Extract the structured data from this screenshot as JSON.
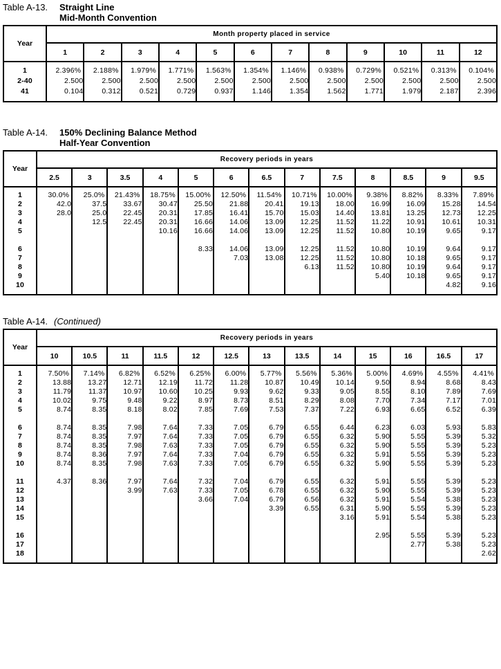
{
  "colors": {
    "background": "#ffffff",
    "text": "#000000",
    "border": "#000000"
  },
  "tables": [
    {
      "id": "a13",
      "label": "Table A-13.",
      "title_lines": [
        "Straight Line",
        "Mid-Month Convention"
      ],
      "year_header": "Year",
      "span_header": "Month property placed in service",
      "columns": [
        "1",
        "2",
        "3",
        "4",
        "5",
        "6",
        "7",
        "8",
        "9",
        "10",
        "11",
        "12"
      ],
      "rows": [
        {
          "year": "1",
          "values": [
            "2.396%",
            "2.188%",
            "1.979%",
            "1.771%",
            "1.563%",
            "1.354%",
            "1.146%",
            "0.938%",
            "0.729%",
            "0.521%",
            "0.313%",
            "0.104%"
          ]
        },
        {
          "year": "2-40",
          "values": [
            "2.500",
            "2.500",
            "2.500",
            "2.500",
            "2.500",
            "2.500",
            "2.500",
            "2.500",
            "2.500",
            "2.500",
            "2.500",
            "2.500"
          ]
        },
        {
          "year": "41",
          "values": [
            "0.104",
            "0.312",
            "0.521",
            "0.729",
            "0.937",
            "1.146",
            "1.354",
            "1.562",
            "1.771",
            "1.979",
            "2.187",
            "2.396"
          ]
        }
      ]
    },
    {
      "id": "a14",
      "label": "Table A-14.",
      "title_lines": [
        "150% Declining Balance Method",
        "Half-Year Convention"
      ],
      "year_header": "Year",
      "span_header": "Recovery periods in years",
      "columns": [
        "2.5",
        "3",
        "3.5",
        "4",
        "5",
        "6",
        "6.5",
        "7",
        "7.5",
        "8",
        "8.5",
        "9",
        "9.5"
      ],
      "rows": [
        {
          "year": "1",
          "values": [
            "30.0%",
            "25.0%",
            "21.43%",
            "18.75%",
            "15.00%",
            "12.50%",
            "11.54%",
            "10.71%",
            "10.00%",
            "9.38%",
            "8.82%",
            "8.33%",
            "7.89%"
          ]
        },
        {
          "year": "2",
          "values": [
            "42.0",
            "37.5",
            "33.67",
            "30.47",
            "25.50",
            "21.88",
            "20.41",
            "19.13",
            "18.00",
            "16.99",
            "16.09",
            "15.28",
            "14.54"
          ]
        },
        {
          "year": "3",
          "values": [
            "28.0",
            "25.0",
            "22.45",
            "20.31",
            "17.85",
            "16.41",
            "15.70",
            "15.03",
            "14.40",
            "13.81",
            "13.25",
            "12.73",
            "12.25"
          ]
        },
        {
          "year": "4",
          "values": [
            "",
            "12.5",
            "22.45",
            "20.31",
            "16.66",
            "14.06",
            "13.09",
            "12.25",
            "11.52",
            "11.22",
            "10.91",
            "10.61",
            "10.31"
          ]
        },
        {
          "year": "5",
          "values": [
            "",
            "",
            "",
            "10.16",
            "16.66",
            "14.06",
            "13.09",
            "12.25",
            "11.52",
            "10.80",
            "10.19",
            "9.65",
            "9.17"
          ]
        },
        {
          "spacer": true,
          "year": "",
          "values": []
        },
        {
          "year": "6",
          "values": [
            "",
            "",
            "",
            "",
            "8.33",
            "14.06",
            "13.09",
            "12.25",
            "11.52",
            "10.80",
            "10.19",
            "9.64",
            "9.17"
          ]
        },
        {
          "year": "7",
          "values": [
            "",
            "",
            "",
            "",
            "",
            "7.03",
            "13.08",
            "12.25",
            "11.52",
            "10.80",
            "10.18",
            "9.65",
            "9.17"
          ]
        },
        {
          "year": "8",
          "values": [
            "",
            "",
            "",
            "",
            "",
            "",
            "",
            "6.13",
            "11.52",
            "10.80",
            "10.19",
            "9.64",
            "9.17"
          ]
        },
        {
          "year": "9",
          "values": [
            "",
            "",
            "",
            "",
            "",
            "",
            "",
            "",
            "",
            "5.40",
            "10.18",
            "9.65",
            "9.17"
          ]
        },
        {
          "year": "10",
          "values": [
            "",
            "",
            "",
            "",
            "",
            "",
            "",
            "",
            "",
            "",
            "",
            "4.82",
            "9.16"
          ]
        }
      ]
    },
    {
      "id": "a14-continued",
      "label": "Table A-14.",
      "title_lines": [
        "(Continued)"
      ],
      "year_header": "Year",
      "span_header": "Recovery periods in years",
      "columns": [
        "10",
        "10.5",
        "11",
        "11.5",
        "12",
        "12.5",
        "13",
        "13.5",
        "14",
        "15",
        "16",
        "16.5",
        "17"
      ],
      "rows": [
        {
          "year": "1",
          "values": [
            "7.50%",
            "7.14%",
            "6.82%",
            "6.52%",
            "6.25%",
            "6.00%",
            "5.77%",
            "5.56%",
            "5.36%",
            "5.00%",
            "4.69%",
            "4.55%",
            "4.41%"
          ]
        },
        {
          "year": "2",
          "values": [
            "13.88",
            "13.27",
            "12.71",
            "12.19",
            "11.72",
            "11.28",
            "10.87",
            "10.49",
            "10.14",
            "9.50",
            "8.94",
            "8.68",
            "8.43"
          ]
        },
        {
          "year": "3",
          "values": [
            "11.79",
            "11.37",
            "10.97",
            "10.60",
            "10.25",
            "9.93",
            "9.62",
            "9.33",
            "9.05",
            "8.55",
            "8.10",
            "7.89",
            "7.69"
          ]
        },
        {
          "year": "4",
          "values": [
            "10.02",
            "9.75",
            "9.48",
            "9.22",
            "8.97",
            "8.73",
            "8.51",
            "8.29",
            "8.08",
            "7.70",
            "7.34",
            "7.17",
            "7.01"
          ]
        },
        {
          "year": "5",
          "values": [
            "8.74",
            "8.35",
            "8.18",
            "8.02",
            "7.85",
            "7.69",
            "7.53",
            "7.37",
            "7.22",
            "6.93",
            "6.65",
            "6.52",
            "6.39"
          ]
        },
        {
          "spacer": true,
          "year": "",
          "values": []
        },
        {
          "year": "6",
          "values": [
            "8.74",
            "8.35",
            "7.98",
            "7.64",
            "7.33",
            "7.05",
            "6.79",
            "6.55",
            "6.44",
            "6.23",
            "6.03",
            "5.93",
            "5.83"
          ]
        },
        {
          "year": "7",
          "values": [
            "8.74",
            "8.35",
            "7.97",
            "7.64",
            "7.33",
            "7.05",
            "6.79",
            "6.55",
            "6.32",
            "5.90",
            "5.55",
            "5.39",
            "5.32"
          ]
        },
        {
          "year": "8",
          "values": [
            "8.74",
            "8.35",
            "7.98",
            "7.63",
            "7.33",
            "7.05",
            "6.79",
            "6.55",
            "6.32",
            "5.90",
            "5.55",
            "5.39",
            "5.23"
          ]
        },
        {
          "year": "9",
          "values": [
            "8.74",
            "8.36",
            "7.97",
            "7.64",
            "7.33",
            "7.04",
            "6.79",
            "6.55",
            "6.32",
            "5.91",
            "5.55",
            "5.39",
            "5.23"
          ]
        },
        {
          "year": "10",
          "values": [
            "8.74",
            "8.35",
            "7.98",
            "7.63",
            "7.33",
            "7.05",
            "6.79",
            "6.55",
            "6.32",
            "5.90",
            "5.55",
            "5.39",
            "5.23"
          ]
        },
        {
          "spacer": true,
          "year": "",
          "values": []
        },
        {
          "year": "11",
          "values": [
            "4.37",
            "8.36",
            "7.97",
            "7.64",
            "7.32",
            "7.04",
            "6.79",
            "6.55",
            "6.32",
            "5.91",
            "5.55",
            "5.39",
            "5.23"
          ]
        },
        {
          "year": "12",
          "values": [
            "",
            "",
            "3.99",
            "7.63",
            "7.33",
            "7.05",
            "6.78",
            "6.55",
            "6.32",
            "5.90",
            "5.55",
            "5.39",
            "5.23"
          ]
        },
        {
          "year": "13",
          "values": [
            "",
            "",
            "",
            "",
            "3.66",
            "7.04",
            "6.79",
            "6.56",
            "6.32",
            "5.91",
            "5.54",
            "5.38",
            "5.23"
          ]
        },
        {
          "year": "14",
          "values": [
            "",
            "",
            "",
            "",
            "",
            "",
            "3.39",
            "6.55",
            "6.31",
            "5.90",
            "5.55",
            "5.39",
            "5.23"
          ]
        },
        {
          "year": "15",
          "values": [
            "",
            "",
            "",
            "",
            "",
            "",
            "",
            "",
            "3.16",
            "5.91",
            "5.54",
            "5.38",
            "5.23"
          ]
        },
        {
          "spacer": true,
          "year": "",
          "values": []
        },
        {
          "year": "16",
          "values": [
            "",
            "",
            "",
            "",
            "",
            "",
            "",
            "",
            "",
            "2.95",
            "5.55",
            "5.39",
            "5.23"
          ]
        },
        {
          "year": "17",
          "values": [
            "",
            "",
            "",
            "",
            "",
            "",
            "",
            "",
            "",
            "",
            "2.77",
            "5.38",
            "5.23"
          ]
        },
        {
          "year": "18",
          "values": [
            "",
            "",
            "",
            "",
            "",
            "",
            "",
            "",
            "",
            "",
            "",
            "",
            "2.62"
          ]
        }
      ]
    }
  ]
}
